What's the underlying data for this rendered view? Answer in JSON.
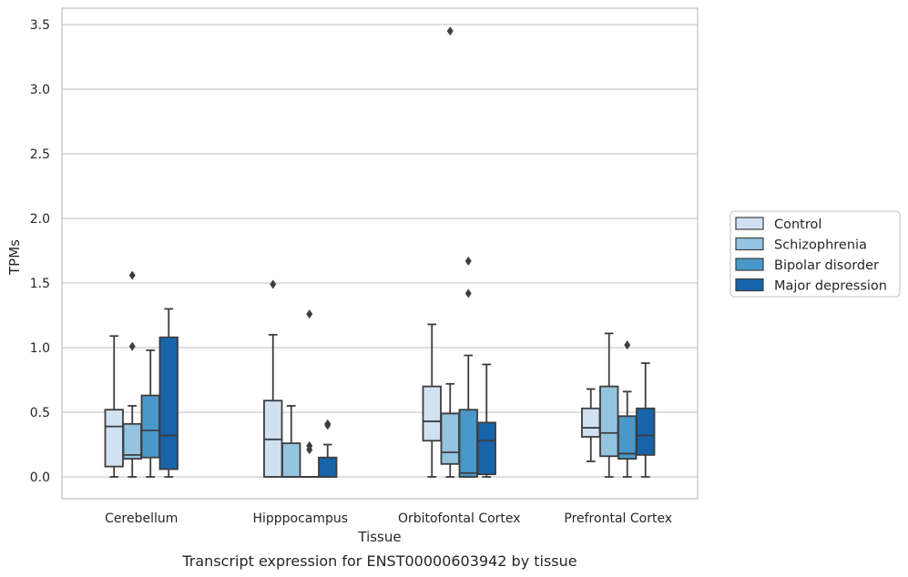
{
  "chart_data": {
    "type": "box",
    "title": "",
    "caption": "Transcript expression for ENST00000603942 by tissue",
    "xlabel": "Tissue",
    "ylabel": "TPMs",
    "ylim": [
      -0.17,
      3.63
    ],
    "yticks": [
      0.0,
      0.5,
      1.0,
      1.5,
      2.0,
      2.5,
      3.0,
      3.5
    ],
    "ytick_labels": [
      "0.0",
      "0.5",
      "1.0",
      "1.5",
      "2.0",
      "2.5",
      "3.0",
      "3.5"
    ],
    "grid": "horizontal",
    "legend_position": "right",
    "categories": [
      "Cerebellum",
      "Hipppocampus",
      "Orbitofontal Cortex",
      "Prefrontal Cortex"
    ],
    "series": [
      {
        "name": "Control",
        "color": "#d0e1f2",
        "boxes": [
          {
            "whislo": 0.0,
            "q1": 0.08,
            "med": 0.39,
            "q3": 0.52,
            "whishi": 1.09,
            "fliers": []
          },
          {
            "whislo": 0.0,
            "q1": 0.0,
            "med": 0.29,
            "q3": 0.59,
            "whishi": 1.1,
            "fliers": [
              1.49
            ]
          },
          {
            "whislo": 0.0,
            "q1": 0.28,
            "med": 0.43,
            "q3": 0.7,
            "whishi": 1.18,
            "fliers": []
          },
          {
            "whislo": 0.12,
            "q1": 0.31,
            "med": 0.38,
            "q3": 0.53,
            "whishi": 0.68,
            "fliers": []
          }
        ]
      },
      {
        "name": "Schizophrenia",
        "color": "#94c4df",
        "boxes": [
          {
            "whislo": 0.0,
            "q1": 0.14,
            "med": 0.17,
            "q3": 0.41,
            "whishi": 0.55,
            "fliers": [
              1.01,
              1.56
            ]
          },
          {
            "whislo": 0.0,
            "q1": 0.0,
            "med": 0.0,
            "q3": 0.26,
            "whishi": 0.55,
            "fliers": []
          },
          {
            "whislo": 0.0,
            "q1": 0.1,
            "med": 0.19,
            "q3": 0.49,
            "whishi": 0.72,
            "fliers": [
              3.45
            ]
          },
          {
            "whislo": 0.0,
            "q1": 0.16,
            "med": 0.34,
            "q3": 0.7,
            "whishi": 1.11,
            "fliers": []
          }
        ]
      },
      {
        "name": "Bipolar disorder",
        "color": "#4a98c9",
        "boxes": [
          {
            "whislo": 0.0,
            "q1": 0.15,
            "med": 0.36,
            "q3": 0.63,
            "whishi": 0.98,
            "fliers": []
          },
          {
            "whislo": 0.0,
            "q1": 0.0,
            "med": 0.0,
            "q3": 0.0,
            "whishi": 0.0,
            "fliers": [
              0.21,
              0.24,
              1.26
            ]
          },
          {
            "whislo": 0.0,
            "q1": 0.0,
            "med": 0.03,
            "q3": 0.52,
            "whishi": 0.94,
            "fliers": [
              1.42,
              1.67
            ]
          },
          {
            "whislo": 0.0,
            "q1": 0.14,
            "med": 0.18,
            "q3": 0.47,
            "whishi": 0.66,
            "fliers": [
              1.02
            ]
          }
        ]
      },
      {
        "name": "Major depression",
        "color": "#1764ab",
        "boxes": [
          {
            "whislo": 0.0,
            "q1": 0.06,
            "med": 0.32,
            "q3": 1.08,
            "whishi": 1.3,
            "fliers": []
          },
          {
            "whislo": 0.0,
            "q1": 0.0,
            "med": 0.0,
            "q3": 0.15,
            "whishi": 0.25,
            "fliers": [
              0.4,
              0.41
            ]
          },
          {
            "whislo": 0.0,
            "q1": 0.02,
            "med": 0.28,
            "q3": 0.42,
            "whishi": 0.87,
            "fliers": []
          },
          {
            "whislo": 0.0,
            "q1": 0.17,
            "med": 0.32,
            "q3": 0.53,
            "whishi": 0.88,
            "fliers": []
          }
        ]
      }
    ]
  }
}
